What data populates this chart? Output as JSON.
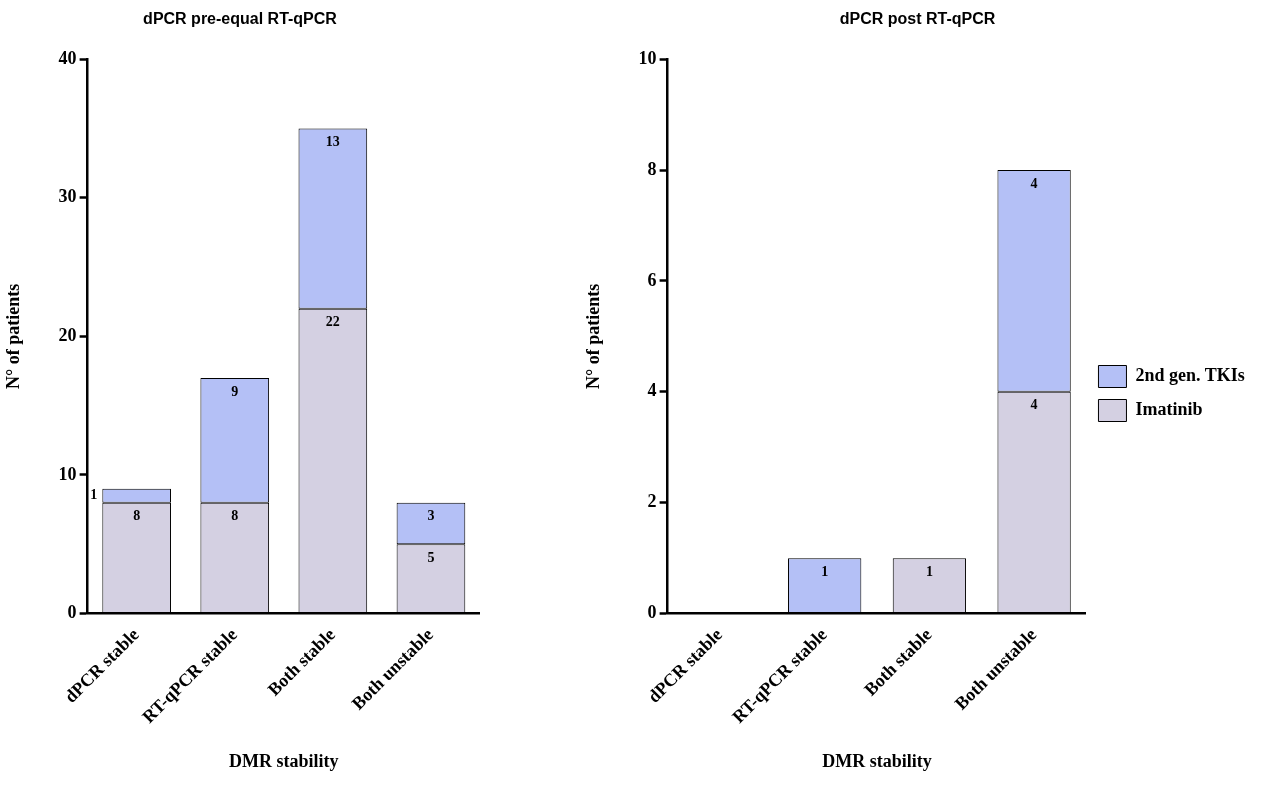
{
  "chart_data": [
    {
      "type": "bar",
      "title": "dPCR pre-equal RT-qPCR",
      "xlabel": "DMR stability",
      "ylabel": "N° of patients",
      "categories": [
        "dPCR stable",
        "RT-qPCR stable",
        "Both stable",
        "Both unstable"
      ],
      "stacked": true,
      "ylim": [
        0,
        40
      ],
      "yticks": [
        0,
        10,
        20,
        30,
        40
      ],
      "grid": false,
      "legend": false,
      "series": [
        {
          "color": "#d4d0e2",
          "values": [
            8,
            8,
            22,
            5
          ],
          "value_labels": [
            "8",
            "8",
            "22",
            "5"
          ]
        },
        {
          "color": "#b4c0f6",
          "values": [
            1,
            9,
            13,
            3
          ],
          "value_labels": [
            "1",
            "9",
            "13",
            "3"
          ]
        }
      ]
    },
    {
      "type": "bar",
      "title": "dPCR post RT-qPCR",
      "xlabel": "DMR stability",
      "ylabel": "N° of patients",
      "categories": [
        "dPCR stable",
        "RT-qPCR stable",
        "Both stable",
        "Both unstable"
      ],
      "stacked": true,
      "ylim": [
        0,
        10
      ],
      "yticks": [
        0,
        2,
        4,
        6,
        8,
        10
      ],
      "grid": false,
      "legend": "right",
      "series": [
        {
          "name": "Imatinib",
          "color": "#d4d0e2",
          "values": [
            0,
            0,
            1,
            4
          ],
          "value_labels": [
            null,
            null,
            "1",
            "4"
          ]
        },
        {
          "name": "2nd gen. TKIs",
          "color": "#b4c0f6",
          "values": [
            0,
            1,
            0,
            4
          ],
          "value_labels": [
            null,
            "1",
            null,
            "4"
          ]
        }
      ]
    }
  ]
}
